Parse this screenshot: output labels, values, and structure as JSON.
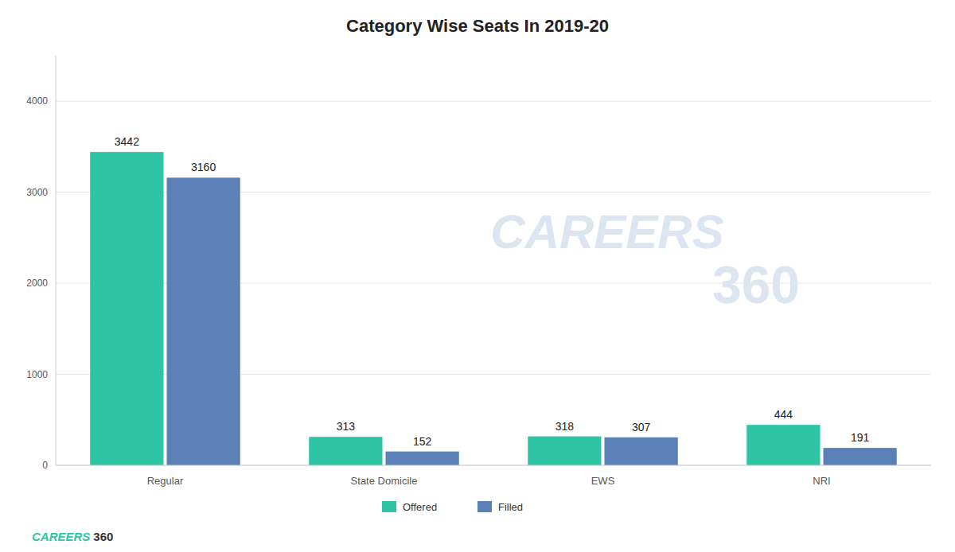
{
  "chart_data": {
    "type": "bar",
    "title": "Category Wise Seats In 2019-20",
    "categories": [
      "Regular",
      "State Domicile",
      "EWS",
      "NRI"
    ],
    "series": [
      {
        "name": "Offered",
        "color": "#2ec4a5",
        "values": [
          3442,
          313,
          318,
          444
        ]
      },
      {
        "name": "Filled",
        "color": "#5b80b8",
        "values": [
          3160,
          152,
          307,
          191
        ]
      }
    ],
    "ylim": [
      0,
      4500
    ],
    "yticks": [
      0,
      1000,
      2000,
      3000,
      4000
    ],
    "grid": true,
    "legend": "bottom",
    "data_labels": true,
    "annotations": [
      "CAREERS",
      "360",
      "CAREERS",
      "360"
    ]
  }
}
